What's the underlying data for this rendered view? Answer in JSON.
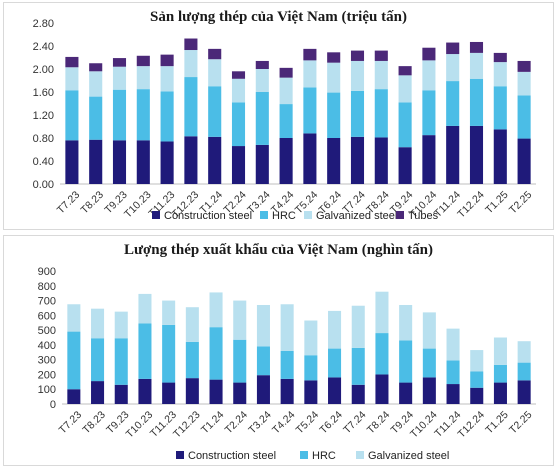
{
  "chart_data": [
    {
      "type": "bar",
      "stacked": true,
      "title": "Sản lượng thép của Việt Nam (triệu tấn)",
      "categories": [
        "T7.23",
        "T8.23",
        "T9.23",
        "T10.23",
        "T11.23",
        "T12.23",
        "T1.24",
        "T2.24",
        "T3.24",
        "T4.24",
        "T5.24",
        "T6.24",
        "T7.24",
        "T8.24",
        "T9.24",
        "T10.24",
        "T11.24",
        "T12.24",
        "T1.25",
        "T2.25"
      ],
      "series": [
        {
          "name": "Construction steel",
          "color": "#1f1a7a",
          "values": [
            0.76,
            0.77,
            0.76,
            0.76,
            0.74,
            0.83,
            0.82,
            0.66,
            0.68,
            0.8,
            0.88,
            0.8,
            0.82,
            0.81,
            0.64,
            0.85,
            1.01,
            1.01,
            0.95,
            0.79
          ]
        },
        {
          "name": "HRC",
          "color": "#4bbde6",
          "values": [
            0.87,
            0.75,
            0.88,
            0.89,
            0.87,
            1.03,
            0.88,
            0.76,
            0.92,
            0.59,
            0.8,
            0.79,
            0.8,
            0.84,
            0.78,
            0.78,
            0.78,
            0.82,
            0.75,
            0.75
          ]
        },
        {
          "name": "Galvanized steel",
          "color": "#b8e0ef",
          "values": [
            0.4,
            0.44,
            0.4,
            0.4,
            0.44,
            0.47,
            0.47,
            0.41,
            0.4,
            0.46,
            0.47,
            0.52,
            0.52,
            0.49,
            0.47,
            0.52,
            0.47,
            0.45,
            0.42,
            0.41
          ]
        },
        {
          "name": "Tubes",
          "color": "#4b2878",
          "values": [
            0.18,
            0.14,
            0.15,
            0.18,
            0.2,
            0.2,
            0.18,
            0.13,
            0.14,
            0.17,
            0.2,
            0.18,
            0.18,
            0.18,
            0.16,
            0.22,
            0.2,
            0.19,
            0.16,
            0.19
          ]
        }
      ],
      "ylim": [
        0,
        2.8
      ],
      "yticks": [
        "0.00",
        "0.40",
        "0.80",
        "1.20",
        "1.60",
        "2.00",
        "2.40",
        "2.80"
      ],
      "grid": false,
      "legend": "bottom"
    },
    {
      "type": "bar",
      "stacked": true,
      "title": "Lượng thép xuất khẩu của Việt Nam (nghìn tấn)",
      "categories": [
        "T7.23",
        "T8.23",
        "T9.23",
        "T10.23",
        "T11.23",
        "T12.23",
        "T1.24",
        "T2.24",
        "T3.24",
        "T4.24",
        "T5.24",
        "T6.24",
        "T7.24",
        "T8.24",
        "T9.24",
        "T10.24",
        "T11.24",
        "T12.24",
        "T1.25",
        "T2.25"
      ],
      "series": [
        {
          "name": "Construction steel",
          "color": "#1f1a7a",
          "values": [
            100,
            155,
            130,
            170,
            145,
            175,
            165,
            145,
            195,
            170,
            160,
            180,
            130,
            200,
            145,
            180,
            135,
            110,
            145,
            160
          ]
        },
        {
          "name": "HRC",
          "color": "#4bbde6",
          "values": [
            390,
            290,
            315,
            375,
            390,
            245,
            355,
            290,
            195,
            190,
            170,
            195,
            250,
            280,
            285,
            195,
            160,
            110,
            120,
            120
          ]
        },
        {
          "name": "Galvanized steel",
          "color": "#b8e0ef",
          "values": [
            185,
            200,
            180,
            200,
            165,
            235,
            235,
            265,
            280,
            315,
            235,
            255,
            285,
            280,
            240,
            245,
            215,
            145,
            185,
            145
          ]
        }
      ],
      "ylim": [
        0,
        900
      ],
      "yticks": [
        "0",
        "100",
        "200",
        "300",
        "400",
        "500",
        "600",
        "700",
        "800",
        "900"
      ],
      "grid": false,
      "legend": "bottom"
    }
  ]
}
